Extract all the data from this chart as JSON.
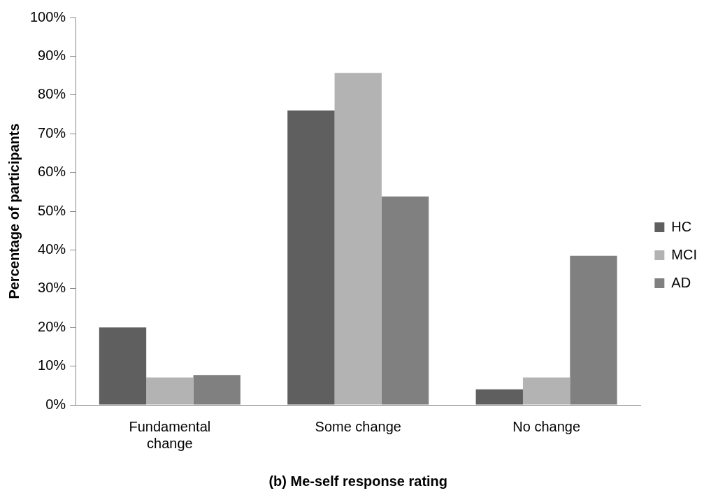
{
  "chart_data": {
    "type": "bar",
    "xlabel": "(b) Me-self response rating",
    "ylabel": "Percentage of participants",
    "categories": [
      "Fundamental change",
      "Some change",
      "No change"
    ],
    "series": [
      {
        "name": "HC",
        "color": "#5f5f5f",
        "values": [
          20,
          76,
          4
        ]
      },
      {
        "name": "MCI",
        "color": "#b3b3b3",
        "values": [
          7.1,
          85.7,
          7.1
        ]
      },
      {
        "name": "AD",
        "color": "#808080",
        "values": [
          7.7,
          53.8,
          38.5
        ]
      }
    ],
    "ylim": [
      0,
      100
    ],
    "yticks": [
      {
        "value": 0,
        "label": "0%"
      },
      {
        "value": 10,
        "label": "10%"
      },
      {
        "value": 20,
        "label": "20%"
      },
      {
        "value": 30,
        "label": "30%"
      },
      {
        "value": 40,
        "label": "40%"
      },
      {
        "value": 50,
        "label": "50%"
      },
      {
        "value": 60,
        "label": "60%"
      },
      {
        "value": 70,
        "label": "70%"
      },
      {
        "value": 80,
        "label": "80%"
      },
      {
        "value": 90,
        "label": "90%"
      },
      {
        "value": 100,
        "label": "100%"
      }
    ],
    "grid": false,
    "legend": "right"
  }
}
